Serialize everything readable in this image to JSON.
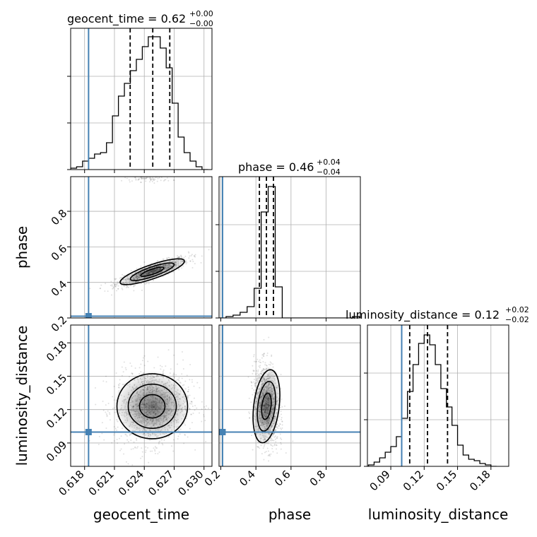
{
  "chart_data": {
    "type": "corner",
    "parameters": [
      "geocent_time",
      "phase",
      "luminosity_distance"
    ],
    "truth_color": "#4682b4",
    "panels": [
      {
        "id": "hist-geocent_time",
        "type": "histogram",
        "param": "geocent_time",
        "title": {
          "name": "geocent_time",
          "median": "0.62",
          "plus": "+0.00",
          "minus": "−0.00"
        },
        "xlim": [
          0.6166,
          0.6308
        ],
        "ylim": [
          0,
          1.0
        ],
        "bin_edges": [
          0.6166,
          0.6172,
          0.6178,
          0.6184,
          0.619,
          0.6196,
          0.6202,
          0.6208,
          0.6214,
          0.622,
          0.6226,
          0.6232,
          0.6238,
          0.6244,
          0.625,
          0.6256,
          0.6262,
          0.6268,
          0.6274,
          0.628,
          0.6286,
          0.6292,
          0.6298,
          0.6304
        ],
        "counts": [
          0.01,
          0.02,
          0.06,
          0.08,
          0.11,
          0.12,
          0.19,
          0.38,
          0.52,
          0.61,
          0.7,
          0.78,
          0.87,
          0.94,
          0.94,
          0.86,
          0.72,
          0.47,
          0.23,
          0.12,
          0.06,
          0.02,
          0.0
        ],
        "quantiles": [
          0.62258,
          0.62485,
          0.62656
        ],
        "truth": 0.6184,
        "xticks": [
          0.618,
          0.621,
          0.624,
          0.627,
          0.63
        ]
      },
      {
        "id": "hist-phase",
        "type": "histogram",
        "param": "phase",
        "title": {
          "name": "phase",
          "median": "0.46",
          "plus": "+0.04",
          "minus": "−0.04"
        },
        "xlim": [
          0.19,
          0.995
        ],
        "ylim": [
          0,
          1.0
        ],
        "bin_edges": [
          0.19,
          0.23,
          0.27,
          0.31,
          0.35,
          0.39,
          0.43,
          0.47,
          0.51,
          0.55,
          0.59,
          0.63,
          0.67,
          0.71,
          0.75,
          0.79,
          0.83,
          0.87,
          0.91,
          0.95,
          0.99
        ],
        "counts": [
          0.0,
          0.01,
          0.02,
          0.04,
          0.08,
          0.21,
          0.75,
          0.93,
          0.22,
          0.0,
          0.0,
          0.0,
          0.0,
          0.0,
          0.0,
          0.0,
          0.0,
          0.0,
          0.0,
          0.01
        ],
        "quantiles": [
          0.42,
          0.46,
          0.5
        ],
        "truth": 0.21,
        "xticks": [
          0.2,
          0.4,
          0.6,
          0.8
        ]
      },
      {
        "id": "hist-luminosity_distance",
        "type": "histogram",
        "param": "luminosity_distance",
        "title": {
          "name": "luminosity_distance",
          "median": "0.12",
          "plus": "+0.02",
          "minus": "−0.02"
        },
        "xlim": [
          0.069,
          0.196
        ],
        "ylim": [
          0,
          1.0
        ],
        "bin_edges": [
          0.07,
          0.075,
          0.08,
          0.085,
          0.09,
          0.095,
          0.1,
          0.105,
          0.11,
          0.115,
          0.12,
          0.125,
          0.13,
          0.135,
          0.14,
          0.145,
          0.15,
          0.155,
          0.16,
          0.165,
          0.17,
          0.175,
          0.18,
          0.185
        ],
        "counts": [
          0.01,
          0.03,
          0.06,
          0.1,
          0.14,
          0.21,
          0.34,
          0.53,
          0.72,
          0.87,
          0.93,
          0.86,
          0.72,
          0.55,
          0.42,
          0.29,
          0.15,
          0.08,
          0.05,
          0.04,
          0.02,
          0.01,
          0.0
        ],
        "quantiles": [
          0.107,
          0.123,
          0.141
        ],
        "truth": 0.0998,
        "xticks": [
          0.09,
          0.12,
          0.15,
          0.18
        ]
      },
      {
        "id": "scatter-geocent_time-phase",
        "type": "density-2d",
        "x_param": "geocent_time",
        "y_param": "phase",
        "xlim": [
          0.6166,
          0.6308
        ],
        "ylim": [
          0.2,
          0.995
        ],
        "truth": [
          0.6184,
          0.21
        ],
        "yticks": [
          0.2,
          0.4,
          0.6,
          0.8
        ]
      },
      {
        "id": "scatter-geocent_time-luminosity_distance",
        "type": "density-2d",
        "x_param": "geocent_time",
        "y_param": "luminosity_distance",
        "xlim": [
          0.6166,
          0.6308
        ],
        "ylim": [
          0.069,
          0.196
        ],
        "truth": [
          0.6184,
          0.0998
        ],
        "xticks": [
          0.618,
          0.621,
          0.624,
          0.627,
          0.63
        ],
        "yticks": [
          0.09,
          0.12,
          0.15,
          0.18
        ]
      },
      {
        "id": "scatter-phase-luminosity_distance",
        "type": "density-2d",
        "x_param": "phase",
        "y_param": "luminosity_distance",
        "xlim": [
          0.19,
          0.995
        ],
        "ylim": [
          0.069,
          0.196
        ],
        "truth": [
          0.21,
          0.0998
        ],
        "xticks": [
          0.2,
          0.4,
          0.6,
          0.8
        ]
      }
    ]
  }
}
